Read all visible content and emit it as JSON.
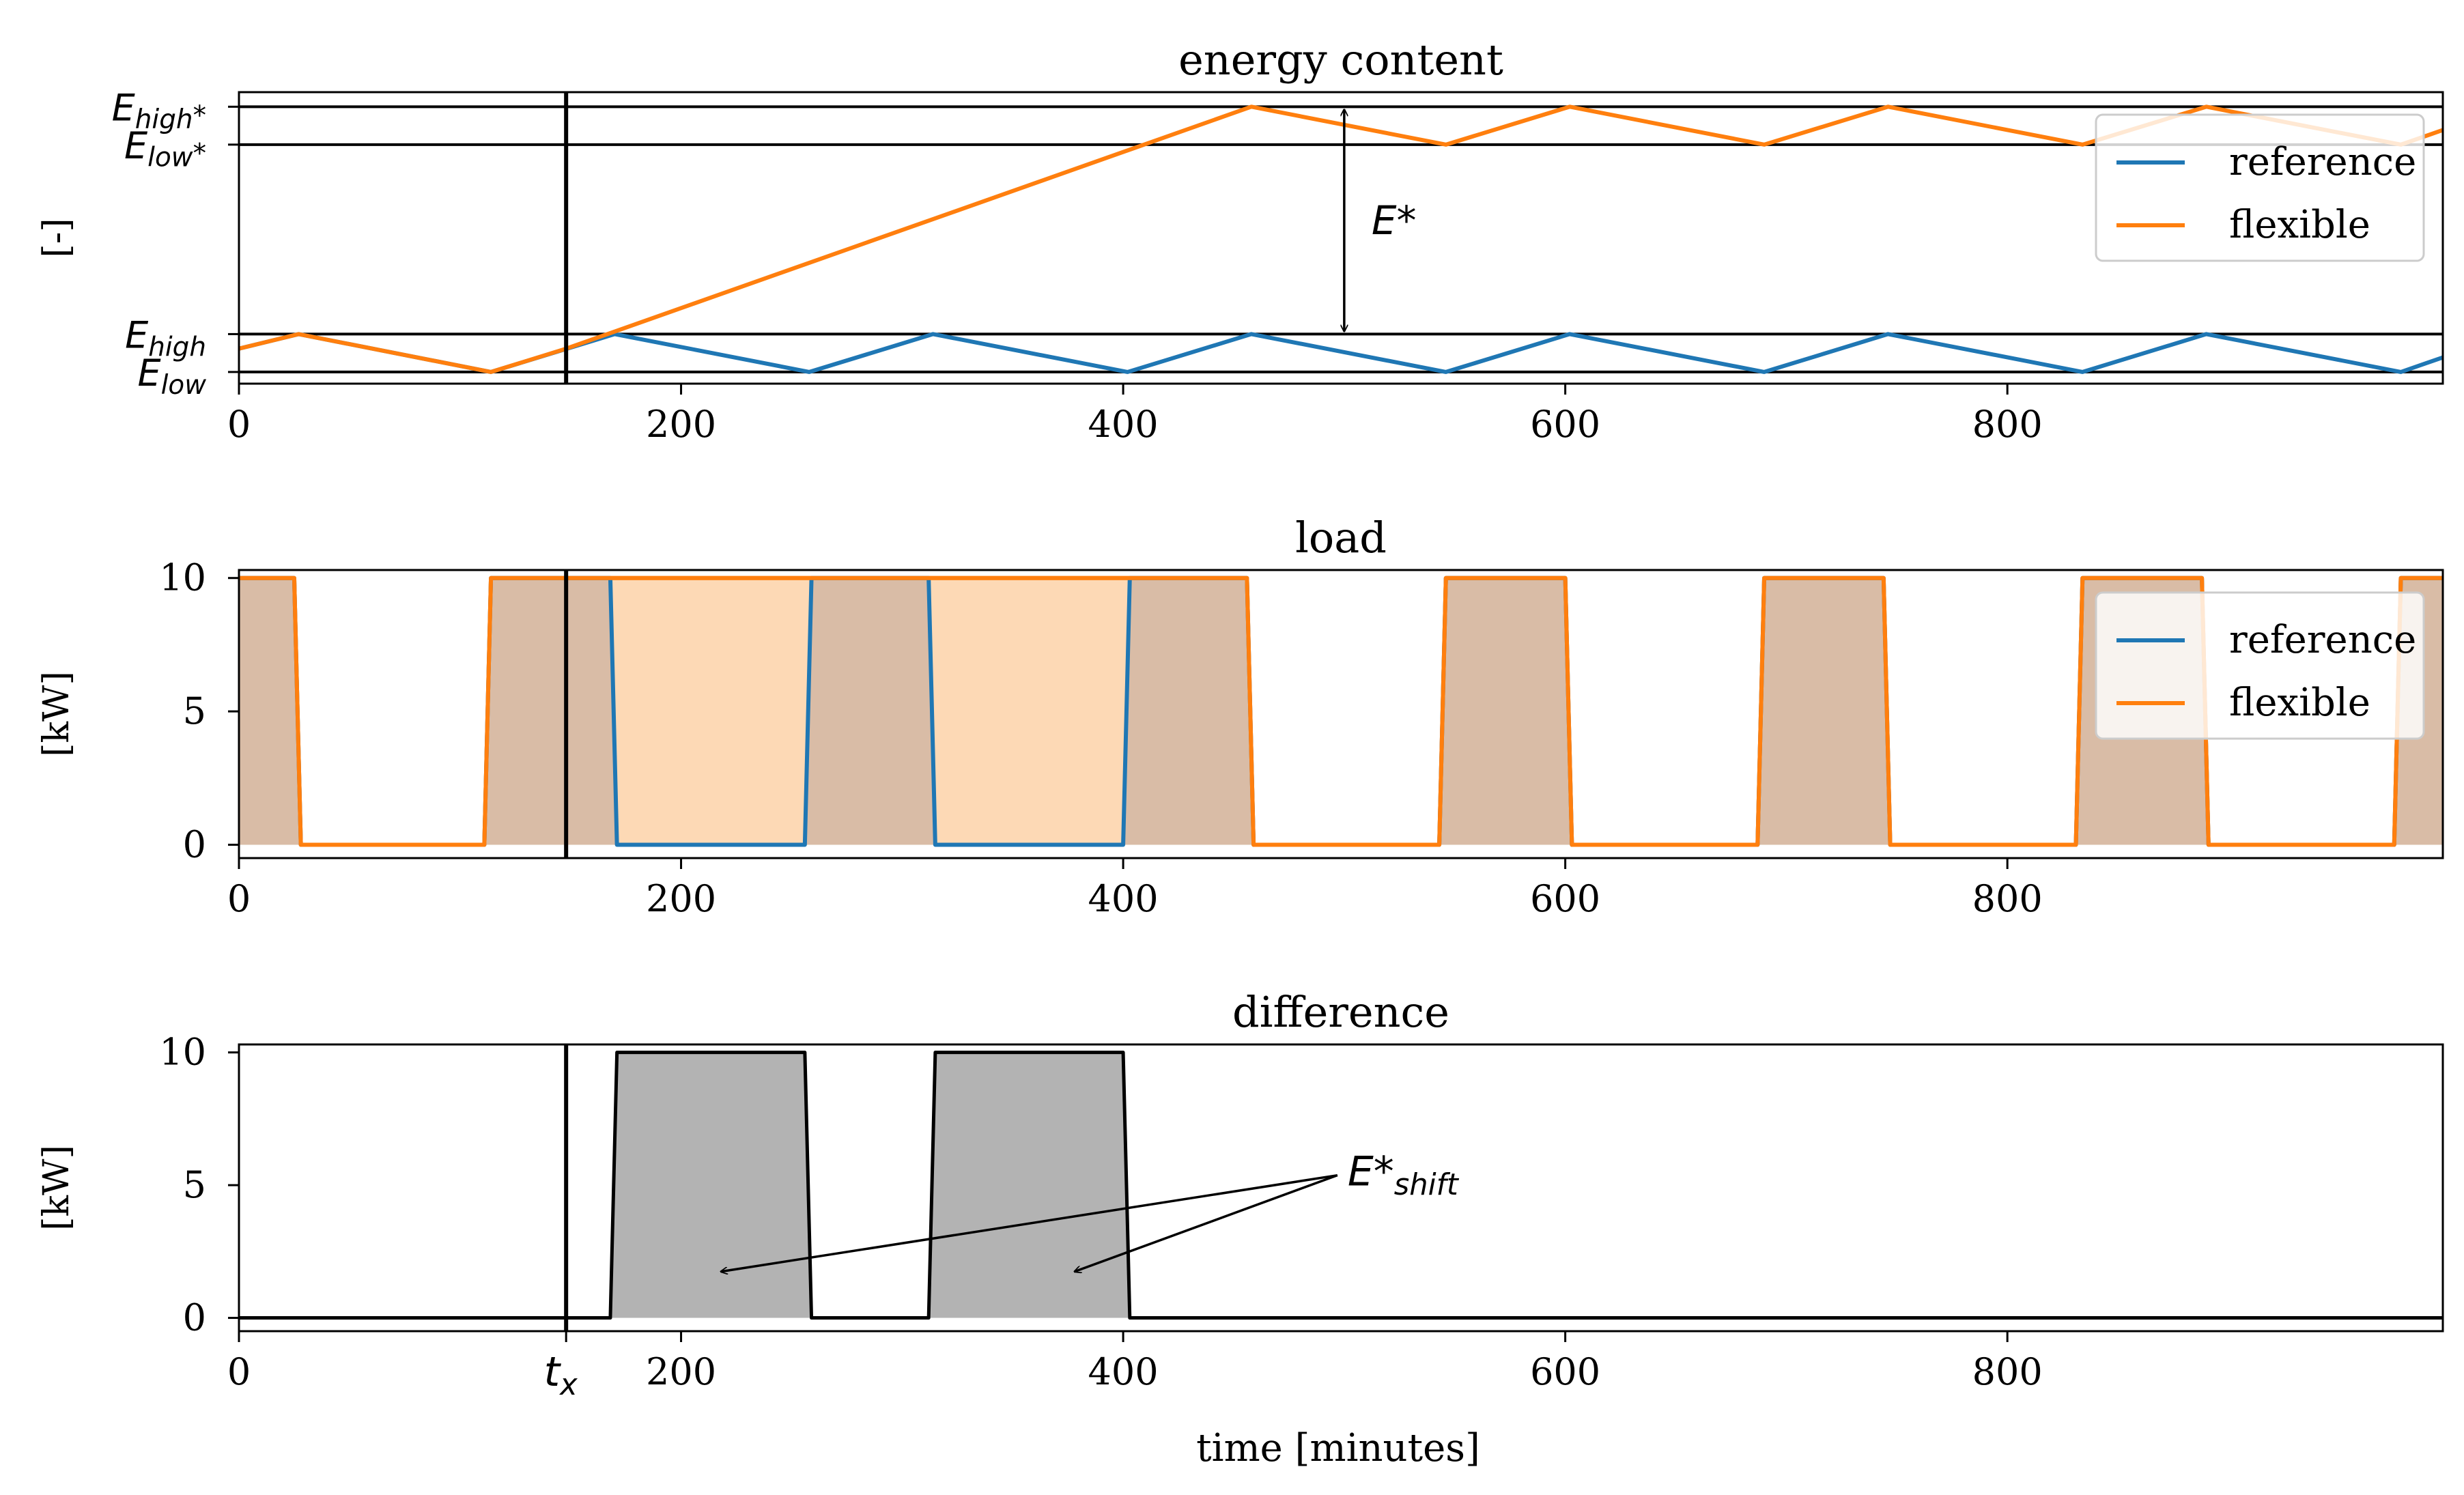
{
  "figure": {
    "xlabel": "time [minutes]"
  },
  "colors": {
    "reference": "#1f77b4",
    "flexible": "#ff7f0e",
    "flexible_fill": "#fdd9b5",
    "overlap_fill": "#d9bca6",
    "difference_fill": "#b3b3b3",
    "axis": "#000000"
  },
  "chart_data": [
    {
      "type": "line",
      "title": "energy content",
      "ylabel": "[-]",
      "xlim": [
        0,
        997
      ],
      "ylim": [
        0,
        1
      ],
      "xticks": [
        0,
        200,
        400,
        600,
        800
      ],
      "xtick_labels": [
        "0",
        "200",
        "400",
        "600",
        "800"
      ],
      "yticks": [
        {
          "value": 0.95,
          "base": "E",
          "sub": "high",
          "sup": "*"
        },
        {
          "value": 0.82,
          "base": "E",
          "sub": "low",
          "sup": "*"
        },
        {
          "value": 0.17,
          "base": "E",
          "sub": "high",
          "sup": ""
        },
        {
          "value": 0.04,
          "base": "E",
          "sub": "low",
          "sup": ""
        }
      ],
      "hlines": [
        0.95,
        0.82,
        0.17,
        0.04
      ],
      "vline_x": 148,
      "legend": {
        "position": "top-right",
        "entries": [
          "reference",
          "flexible"
        ]
      },
      "series": [
        {
          "name": "reference",
          "color": "#1f77b4",
          "x": [
            0,
            27,
            114,
            170,
            258,
            314,
            402,
            458,
            546,
            602,
            690,
            746,
            834,
            890,
            978,
            997
          ],
          "y": [
            0.12,
            0.17,
            0.04,
            0.17,
            0.04,
            0.17,
            0.04,
            0.17,
            0.04,
            0.17,
            0.04,
            0.17,
            0.04,
            0.17,
            0.04,
            0.09
          ]
        },
        {
          "name": "flexible",
          "color": "#ff7f0e",
          "x": [
            0,
            27,
            114,
            148,
            458,
            546,
            602,
            690,
            746,
            834,
            890,
            978,
            997
          ],
          "y": [
            0.12,
            0.17,
            0.04,
            0.12,
            0.95,
            0.82,
            0.95,
            0.82,
            0.95,
            0.82,
            0.95,
            0.82,
            0.87
          ]
        }
      ],
      "annotation": {
        "text": "E*",
        "x": 500,
        "y_from": 0.95,
        "y_to": 0.17
      }
    },
    {
      "type": "area",
      "title": "load",
      "ylabel": "[kW]",
      "xlim": [
        0,
        997
      ],
      "ylim": [
        -0.5,
        10.3
      ],
      "xticks": [
        0,
        200,
        400,
        600,
        800
      ],
      "xtick_labels": [
        "0",
        "200",
        "400",
        "600",
        "800"
      ],
      "yticks": [
        0,
        5,
        10
      ],
      "ytick_labels": [
        "0",
        "5",
        "10"
      ],
      "vline_x": 148,
      "legend": {
        "position": "top-right",
        "entries": [
          "reference",
          "flexible"
        ]
      },
      "series": [
        {
          "name": "reference",
          "color": "#1f77b4",
          "x": [
            0,
            25,
            28,
            111,
            114,
            168,
            171,
            256,
            259,
            312,
            315,
            400,
            403,
            456,
            459,
            543,
            546,
            600,
            603,
            687,
            690,
            744,
            747,
            831,
            834,
            888,
            891,
            975,
            978,
            997
          ],
          "y": [
            10,
            10,
            0,
            0,
            10,
            10,
            0,
            0,
            10,
            10,
            0,
            0,
            10,
            10,
            0,
            0,
            10,
            10,
            0,
            0,
            10,
            10,
            0,
            0,
            10,
            10,
            0,
            0,
            10,
            10
          ]
        },
        {
          "name": "flexible",
          "color": "#ff7f0e",
          "x": [
            0,
            25,
            28,
            111,
            114,
            456,
            459,
            543,
            546,
            600,
            603,
            687,
            690,
            744,
            747,
            831,
            834,
            888,
            891,
            975,
            978,
            997
          ],
          "y": [
            10,
            10,
            0,
            0,
            10,
            10,
            0,
            0,
            10,
            10,
            0,
            0,
            10,
            10,
            0,
            0,
            10,
            10,
            0,
            0,
            10,
            10
          ]
        }
      ]
    },
    {
      "type": "area",
      "title": "difference",
      "ylabel": "[kW]",
      "xlim": [
        0,
        997
      ],
      "ylim": [
        -0.5,
        10.3
      ],
      "xticks": [
        0,
        200,
        400,
        600,
        800
      ],
      "xtick_labels": [
        "0",
        "200",
        "400",
        "600",
        "800"
      ],
      "special_xtick": {
        "value": 148,
        "base": "t",
        "sub": "x"
      },
      "yticks": [
        0,
        5,
        10
      ],
      "ytick_labels": [
        "0",
        "5",
        "10"
      ],
      "vline_x": 148,
      "series": [
        {
          "name": "",
          "color": "#000000",
          "x": [
            0,
            168,
            171,
            256,
            259,
            312,
            315,
            400,
            403,
            997
          ],
          "y": [
            0,
            0,
            10,
            10,
            0,
            0,
            10,
            10,
            0,
            0
          ]
        }
      ],
      "annotation": {
        "text_base": "E*",
        "text_sub": "shift",
        "text_x": 500,
        "text_y": 5.5,
        "arrow_targets": [
          [
            218,
            2
          ],
          [
            378,
            2
          ]
        ]
      }
    }
  ]
}
